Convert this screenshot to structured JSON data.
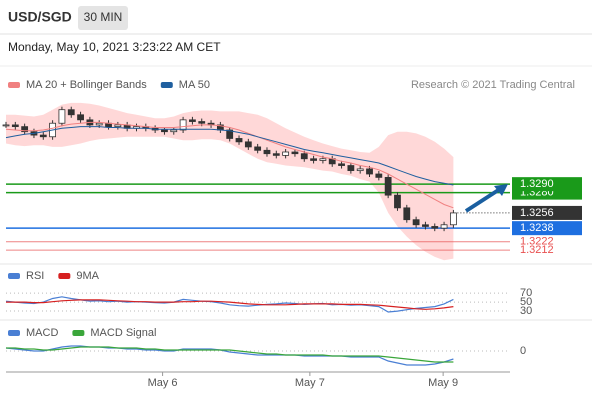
{
  "header": {
    "symbol": "USD/SGD",
    "interval": "30 MIN",
    "timestamp": "Monday, May 10, 2021 3:23:22 AM CET"
  },
  "chart_data": [
    {
      "type": "candlestick",
      "credit": "Research © 2021 Trading Central",
      "xlim": [
        0,
        53
      ],
      "ylim": [
        1.3198,
        1.3419
      ],
      "values": [
        1.336,
        1.3358,
        1.3352,
        1.3348,
        1.3346,
        1.3362,
        1.3378,
        1.3372,
        1.3366,
        1.336,
        1.3362,
        1.3358,
        1.336,
        1.3356,
        1.3358,
        1.3356,
        1.3354,
        1.3352,
        1.3354,
        1.3366,
        1.3364,
        1.3362,
        1.336,
        1.3354,
        1.3344,
        1.334,
        1.3334,
        1.333,
        1.3326,
        1.3324,
        1.3328,
        1.3326,
        1.332,
        1.3318,
        1.332,
        1.3314,
        1.3312,
        1.3306,
        1.3308,
        1.3302,
        1.3298,
        1.3277,
        1.3262,
        1.3248,
        1.3242,
        1.324,
        1.3238,
        1.3242,
        1.3256
      ],
      "candle_color": "#333333",
      "series": [
        {
          "name": "MA 20 + Bollinger Bands",
          "color": "#f08080",
          "band_color": "#ffc8c8",
          "values": [
            1.3355,
            1.3354,
            1.3353,
            1.3353,
            1.3354,
            1.3356,
            1.3359,
            1.3361,
            1.3362,
            1.3363,
            1.3363,
            1.3362,
            1.3361,
            1.336,
            1.3359,
            1.3358,
            1.3357,
            1.3357,
            1.3357,
            1.3358,
            1.3359,
            1.336,
            1.336,
            1.3359,
            1.3357,
            1.3354,
            1.335,
            1.3346,
            1.3342,
            1.3338,
            1.3334,
            1.3331,
            1.3328,
            1.3325,
            1.3322,
            1.332,
            1.3317,
            1.3315,
            1.3312,
            1.331,
            1.3307,
            1.3302,
            1.3296,
            1.329,
            1.3284,
            1.3278,
            1.3272,
            1.3266,
            1.3262
          ],
          "upper": [
            1.3372,
            1.3372,
            1.3371,
            1.337,
            1.3372,
            1.3378,
            1.3384,
            1.3386,
            1.3386,
            1.3385,
            1.3383,
            1.338,
            1.3377,
            1.3374,
            1.3372,
            1.337,
            1.3368,
            1.3368,
            1.337,
            1.3374,
            1.3376,
            1.3377,
            1.3377,
            1.3376,
            1.3376,
            1.3376,
            1.3374,
            1.3372,
            1.3368,
            1.3362,
            1.3356,
            1.3351,
            1.3346,
            1.3342,
            1.3338,
            1.3335,
            1.3332,
            1.333,
            1.3328,
            1.3327,
            1.3334,
            1.3348,
            1.3352,
            1.3352,
            1.335,
            1.3346,
            1.334,
            1.3332,
            1.3322
          ],
          "lower": [
            1.3338,
            1.3336,
            1.3335,
            1.3336,
            1.3336,
            1.3334,
            1.3334,
            1.3336,
            1.3338,
            1.3341,
            1.3343,
            1.3344,
            1.3345,
            1.3346,
            1.3346,
            1.3346,
            1.3346,
            1.3346,
            1.3344,
            1.3342,
            1.3342,
            1.3343,
            1.3343,
            1.3342,
            1.3338,
            1.3332,
            1.3326,
            1.332,
            1.3316,
            1.3314,
            1.3312,
            1.3311,
            1.331,
            1.3308,
            1.3306,
            1.3305,
            1.3302,
            1.33,
            1.3296,
            1.3293,
            1.328,
            1.3256,
            1.324,
            1.3228,
            1.3218,
            1.321,
            1.3204,
            1.32,
            1.3202
          ]
        },
        {
          "name": "MA 50",
          "color": "#1f5f9f",
          "values": [
            1.3345,
            1.3347,
            1.3349,
            1.335,
            1.3352,
            1.3354,
            1.3356,
            1.3357,
            1.3358,
            1.3358,
            1.3358,
            1.3357,
            1.3357,
            1.3356,
            1.3356,
            1.3356,
            1.3355,
            1.3355,
            1.3355,
            1.3355,
            1.3355,
            1.3355,
            1.3355,
            1.3354,
            1.3353,
            1.3351,
            1.3349,
            1.3346,
            1.3343,
            1.334,
            1.3337,
            1.3334,
            1.3331,
            1.3329,
            1.3327,
            1.3325,
            1.3323,
            1.3321,
            1.3319,
            1.3317,
            1.3315,
            1.3311,
            1.3307,
            1.3303,
            1.3299,
            1.3296,
            1.3293,
            1.3291,
            1.3289
          ]
        }
      ],
      "levels": [
        {
          "value": 1.329,
          "label": "1.3290",
          "color": "#1a9a1a",
          "box": true,
          "line": "solid"
        },
        {
          "value": 1.328,
          "label": "1.3280",
          "color": "#1a9a1a",
          "box": true,
          "line": "solid"
        },
        {
          "value": 1.3256,
          "label": "1.3256",
          "color": "#333333",
          "box": true,
          "line": "dotted"
        },
        {
          "value": 1.3238,
          "label": "1.3238",
          "color": "#1e6fe0",
          "box": true,
          "line": "solid"
        },
        {
          "value": 1.3222,
          "label": "1.3222",
          "color": "#e85050",
          "box": false,
          "line": "solid"
        },
        {
          "value": 1.3212,
          "label": "1.3212",
          "color": "#e85050",
          "box": false,
          "line": "solid"
        }
      ]
    },
    {
      "type": "line",
      "xlim": [
        0,
        53
      ],
      "ylim": [
        10,
        95
      ],
      "yticks": [
        70,
        50,
        30
      ],
      "series": [
        {
          "name": "RSI",
          "color": "#4a7fd4",
          "values": [
            52,
            50,
            48,
            47,
            50,
            58,
            62,
            58,
            55,
            52,
            53,
            51,
            52,
            50,
            51,
            50,
            49,
            48,
            50,
            56,
            54,
            52,
            51,
            48,
            44,
            42,
            41,
            43,
            45,
            46,
            48,
            47,
            45,
            46,
            47,
            44,
            45,
            43,
            44,
            42,
            40,
            28,
            30,
            33,
            36,
            38,
            40,
            46,
            56
          ]
        },
        {
          "name": "9MA",
          "color": "#d62020",
          "values": [
            50,
            50,
            50,
            49,
            49,
            51,
            53,
            54,
            55,
            55,
            55,
            54,
            53,
            52,
            51,
            51,
            50,
            50,
            50,
            51,
            51,
            52,
            52,
            51,
            50,
            48,
            46,
            45,
            44,
            44,
            44,
            45,
            46,
            46,
            46,
            46,
            45,
            45,
            45,
            44,
            43,
            41,
            39,
            37,
            35,
            34,
            35,
            37,
            40
          ]
        }
      ]
    },
    {
      "type": "line",
      "xlim": [
        0,
        53
      ],
      "ylim": [
        -0.0019,
        0.0013
      ],
      "yticks": [
        0
      ],
      "xticks": [
        {
          "value": 16.8,
          "label": "May 6"
        },
        {
          "value": 32.6,
          "label": "May 7"
        },
        {
          "value": 46.9,
          "label": "May 9"
        }
      ],
      "series": [
        {
          "name": "MACD",
          "color": "#4a7fd4",
          "values": [
            0.0003,
            0.0002,
            0.0001,
            0.0,
            0.0,
            0.0002,
            0.0004,
            0.0005,
            0.0005,
            0.0004,
            0.0004,
            0.0003,
            0.0003,
            0.0002,
            0.0002,
            0.0001,
            0.0001,
            0.0,
            0.0,
            0.0002,
            0.0002,
            0.0002,
            0.0002,
            0.0001,
            -0.0001,
            -0.0002,
            -0.0003,
            -0.0004,
            -0.0004,
            -0.0004,
            -0.0004,
            -0.0004,
            -0.0005,
            -0.0005,
            -0.0005,
            -0.0005,
            -0.0005,
            -0.0006,
            -0.0006,
            -0.0006,
            -0.0006,
            -0.001,
            -0.0012,
            -0.0014,
            -0.0014,
            -0.0014,
            -0.0013,
            -0.0011,
            -0.0008
          ]
        },
        {
          "name": "MACD Signal",
          "color": "#3aa63a",
          "values": [
            0.0003,
            0.0003,
            0.0002,
            0.0002,
            0.0001,
            0.0001,
            0.0002,
            0.0003,
            0.0004,
            0.0004,
            0.0004,
            0.0004,
            0.0003,
            0.0003,
            0.0003,
            0.0002,
            0.0002,
            0.0001,
            0.0001,
            0.0001,
            0.0001,
            0.0001,
            0.0001,
            0.0001,
            0.0001,
            0.0,
            -0.0001,
            -0.0002,
            -0.0003,
            -0.0003,
            -0.0004,
            -0.0004,
            -0.0004,
            -0.0004,
            -0.0004,
            -0.0005,
            -0.0005,
            -0.0005,
            -0.0005,
            -0.0005,
            -0.0005,
            -0.0006,
            -0.0007,
            -0.0008,
            -0.0009,
            -0.001,
            -0.0011,
            -0.0011,
            -0.0011
          ]
        }
      ]
    }
  ]
}
